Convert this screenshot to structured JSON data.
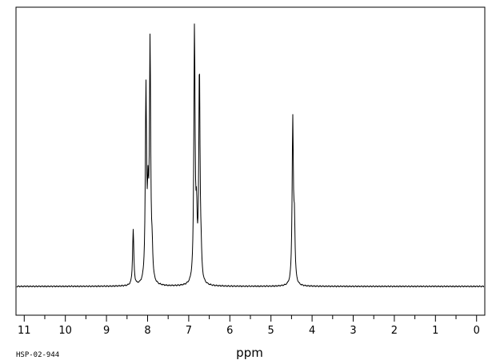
{
  "chart_data": {
    "type": "line",
    "title": "",
    "xlabel": "ppm",
    "ylabel": "",
    "xlim": [
      11.2,
      -0.2
    ],
    "x_reversed": true,
    "grid": false,
    "legend": "none",
    "tick_labels": [
      "11",
      "10",
      "9",
      "8",
      "7",
      "6",
      "5",
      "4",
      "3",
      "2",
      "1",
      "0"
    ],
    "tick_values": [
      11,
      10,
      9,
      8,
      7,
      6,
      5,
      4,
      3,
      2,
      1,
      0
    ],
    "baseline": 0,
    "ylim": [
      -0.12,
      1.05
    ],
    "peaks": [
      {
        "shift": 8.35,
        "intensity": 0.22
      },
      {
        "shift": 8.04,
        "intensity": 0.75
      },
      {
        "shift": 7.99,
        "intensity": 0.28
      },
      {
        "shift": 7.94,
        "intensity": 0.93
      },
      {
        "shift": 7.89,
        "intensity": 0.1
      },
      {
        "shift": 6.86,
        "intensity": 1.0
      },
      {
        "shift": 6.81,
        "intensity": 0.22
      },
      {
        "shift": 6.74,
        "intensity": 0.84
      },
      {
        "shift": 6.7,
        "intensity": 0.08
      },
      {
        "shift": 4.47,
        "intensity": 0.64
      },
      {
        "shift": 4.43,
        "intensity": 0.22
      }
    ],
    "line_color": "#000000"
  },
  "footer": {
    "code": "HSP-02-944"
  }
}
